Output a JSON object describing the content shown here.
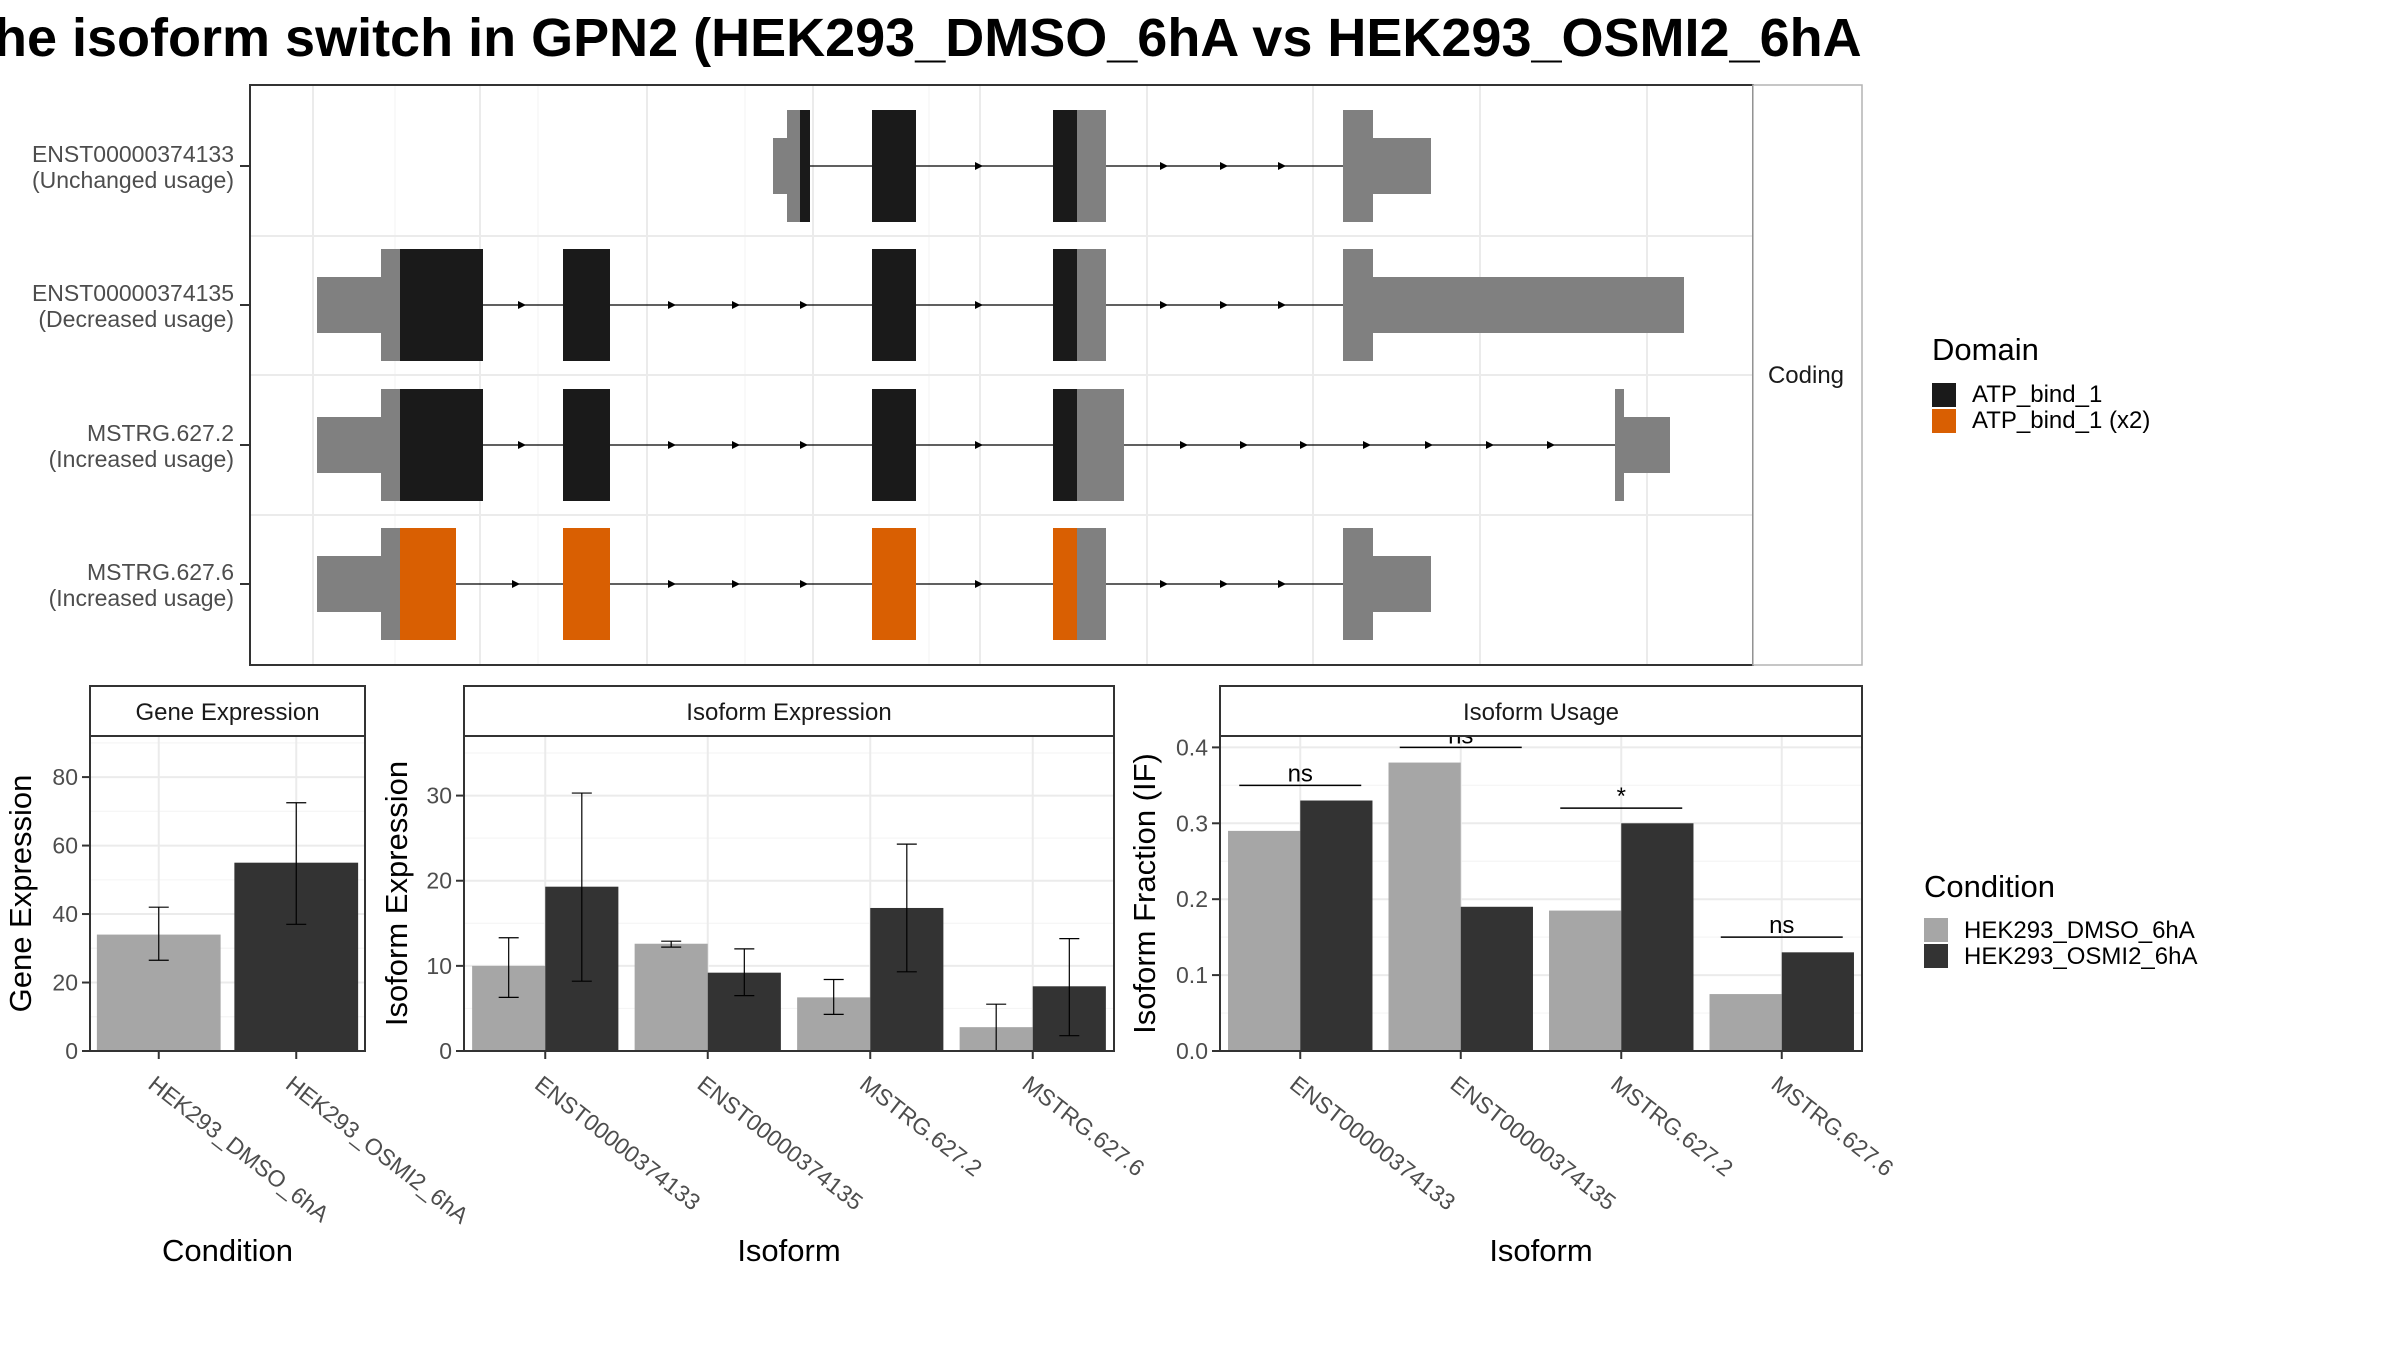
{
  "title": "he isoform switch in GPN2 (HEK293_DMSO_6hA vs HEK293_OSMI2_6hA",
  "colors": {
    "utr": "#808080",
    "domain_atp": "#1a1a1a",
    "domain_atp_x2": "#d95f02",
    "cond_dmso": "#a6a6a6",
    "cond_osmi2": "#333333",
    "grid": "#ebebeb",
    "strip_bg": "#ffffff",
    "axis_text": "#4d4d4d"
  },
  "structure_panel": {
    "facet_label": "Coding",
    "transcripts": [
      {
        "id": "ENST00000374133",
        "usage": "(Unchanged usage)",
        "domain": "ATP_bind_1"
      },
      {
        "id": "ENST00000374135",
        "usage": "(Decreased usage)",
        "domain": "ATP_bind_1"
      },
      {
        "id": "MSTRG.627.2",
        "usage": "(Increased usage)",
        "domain": "ATP_bind_1"
      },
      {
        "id": "MSTRG.627.6",
        "usage": "(Increased usage)",
        "domain": "ATP_bind_1 (x2)"
      }
    ]
  },
  "legends": {
    "domain": {
      "title": "Domain",
      "items": [
        "ATP_bind_1",
        "ATP_bind_1 (x2)"
      ]
    },
    "condition": {
      "title": "Condition",
      "items": [
        "HEK293_DMSO_6hA",
        "HEK293_OSMI2_6hA"
      ]
    }
  },
  "chart_data": [
    {
      "type": "bar",
      "panel": "Gene Expression",
      "xlabel": "Condition",
      "ylabel": "Gene Expression",
      "ylim": [
        0,
        92
      ],
      "yticks": [
        0,
        20,
        40,
        60,
        80
      ],
      "categories": [
        "HEK293_DMSO_6hA",
        "HEK293_OSMI2_6hA"
      ],
      "values": [
        34,
        55
      ],
      "error_low": [
        26.5,
        37
      ],
      "error_high": [
        42,
        72.5
      ]
    },
    {
      "type": "bar",
      "panel": "Isoform Expression",
      "xlabel": "Isoform",
      "ylabel": "Isoform Expression",
      "ylim": [
        0,
        37
      ],
      "yticks": [
        0,
        10,
        20,
        30
      ],
      "categories": [
        "ENST00000374133",
        "ENST00000374135",
        "MSTRG.627.2",
        "MSTRG.627.6"
      ],
      "series": [
        {
          "name": "HEK293_DMSO_6hA",
          "values": [
            10,
            12.6,
            6.3,
            2.8
          ],
          "error_low": [
            6.3,
            12.2,
            4.3,
            0
          ],
          "error_high": [
            13.3,
            12.9,
            8.4,
            5.5
          ]
        },
        {
          "name": "HEK293_OSMI2_6hA",
          "values": [
            19.3,
            9.2,
            16.8,
            7.6
          ],
          "error_low": [
            8.2,
            6.5,
            9.3,
            1.8
          ],
          "error_high": [
            30.3,
            12,
            24.3,
            13.2
          ]
        }
      ]
    },
    {
      "type": "bar",
      "panel": "Isoform Usage",
      "xlabel": "Isoform",
      "ylabel": "Isoform Fraction (IF)",
      "ylim": [
        0,
        0.415
      ],
      "yticks": [
        0.0,
        0.1,
        0.2,
        0.3,
        0.4
      ],
      "ytick_labels": [
        "0.0",
        "0.1",
        "0.2",
        "0.3",
        "0.4"
      ],
      "categories": [
        "ENST00000374133",
        "ENST00000374135",
        "MSTRG.627.2",
        "MSTRG.627.6"
      ],
      "series": [
        {
          "name": "HEK293_DMSO_6hA",
          "values": [
            0.29,
            0.38,
            0.185,
            0.075
          ]
        },
        {
          "name": "HEK293_OSMI2_6hA",
          "values": [
            0.33,
            0.19,
            0.3,
            0.13
          ]
        }
      ],
      "annotations": [
        {
          "category": "ENST00000374133",
          "label": "ns",
          "y": 0.35
        },
        {
          "category": "ENST00000374135",
          "label": "ns",
          "y": 0.4
        },
        {
          "category": "MSTRG.627.2",
          "label": "*",
          "y": 0.32
        },
        {
          "category": "MSTRG.627.6",
          "label": "ns",
          "y": 0.15
        }
      ]
    }
  ]
}
